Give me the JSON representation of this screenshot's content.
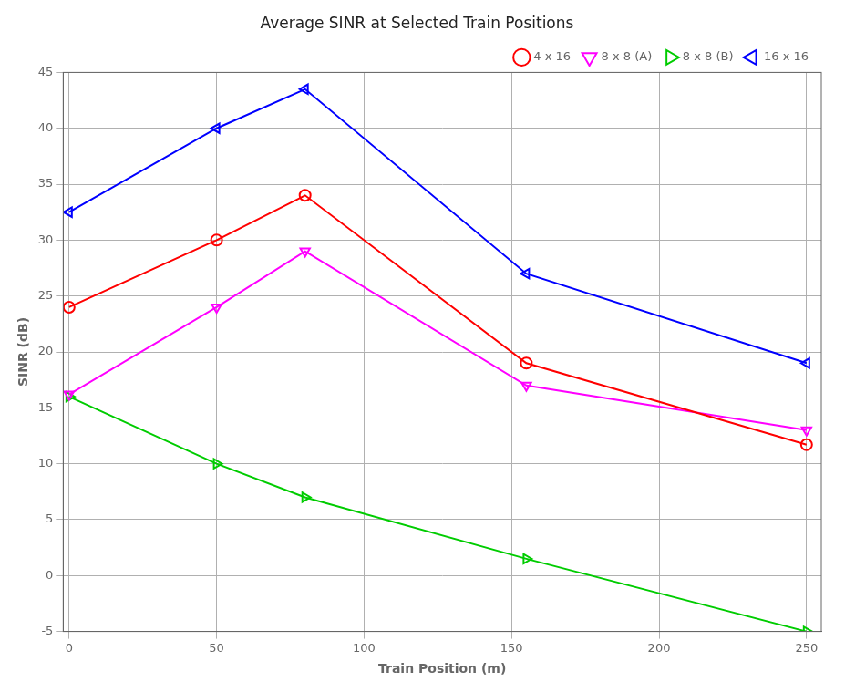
{
  "chart_data": {
    "type": "line",
    "title": "Average SINR at Selected Train Positions",
    "xlabel": "Train Position (m)",
    "ylabel": "SINR (dB)",
    "x": [
      0,
      50,
      80,
      155,
      250
    ],
    "series": [
      {
        "name": "4 x 16",
        "color": "#ff0000",
        "marker": "circle",
        "values": [
          24,
          30,
          34,
          19,
          11.7
        ]
      },
      {
        "name": "8 x 8 (A)",
        "color": "#ff00ff",
        "marker": "triangle-down",
        "values": [
          16.2,
          24,
          29,
          17,
          13
        ]
      },
      {
        "name": "8 x 8 (B)",
        "color": "#00cc00",
        "marker": "triangle-right",
        "values": [
          16,
          10,
          7,
          1.5,
          -5
        ]
      },
      {
        "name": "16 x 16",
        "color": "#0000ff",
        "marker": "triangle-left",
        "values": [
          32.5,
          40,
          43.5,
          27,
          19
        ]
      }
    ],
    "xlim": [
      -2,
      255
    ],
    "ylim": [
      -5,
      45
    ],
    "xticks": [
      0,
      50,
      100,
      150,
      200,
      250
    ],
    "yticks": [
      -5,
      0,
      5,
      10,
      15,
      20,
      25,
      30,
      35,
      40,
      45
    ],
    "grid": true,
    "legend": "upper right"
  }
}
